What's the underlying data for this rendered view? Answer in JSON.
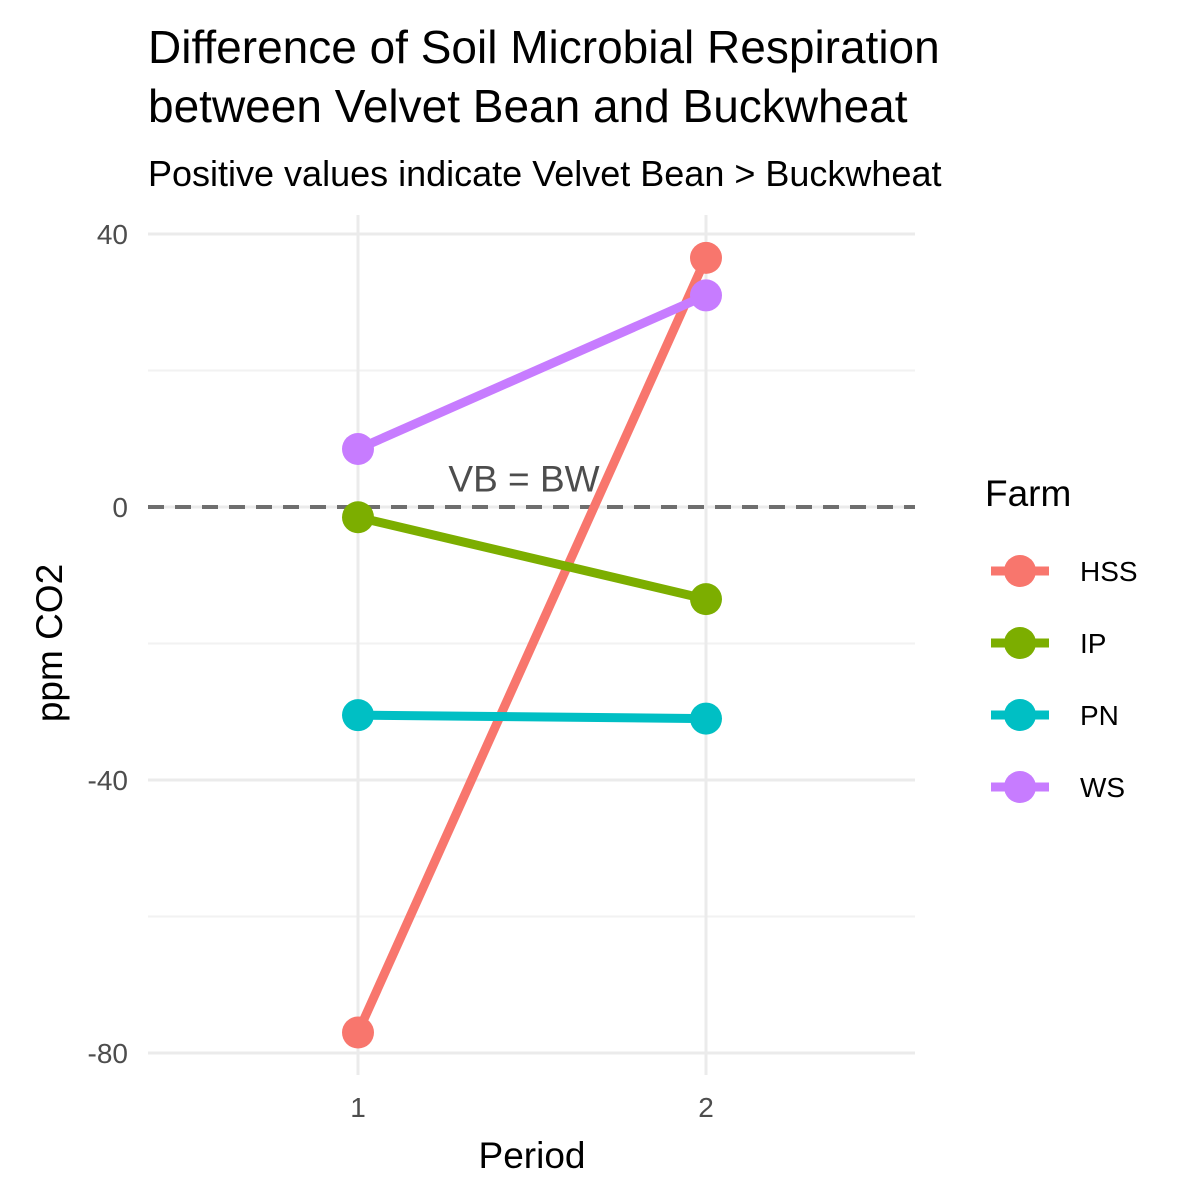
{
  "chart_data": {
    "type": "line",
    "title_lines": [
      "Difference of Soil Microbial Respiration",
      "between Velvet Bean and Buckwheat"
    ],
    "subtitle": "Positive values indicate Velvet Bean > Buckwheat",
    "xlabel": "Period",
    "ylabel": "ppm CO2",
    "x_ticks": [
      1,
      2
    ],
    "x_tick_labels": [
      "1",
      "2"
    ],
    "xlim": [
      0.43,
      2.6
    ],
    "y_ticks": [
      40,
      0,
      -40,
      -80
    ],
    "y_tick_labels": [
      "40",
      "0",
      "-40",
      "-80"
    ],
    "ylim": [
      -80,
      40
    ],
    "grid": true,
    "reference_line": {
      "y": 0,
      "style": "dashed",
      "color": "#6e6e6e"
    },
    "annotation": {
      "text": "VB = BW",
      "x": 1.5,
      "y": 4
    },
    "legend": {
      "title": "Farm",
      "placement": "right"
    },
    "x": [
      1,
      2
    ],
    "series": [
      {
        "name": "HSS",
        "color": "#F8766D",
        "values": [
          -77,
          36.5
        ]
      },
      {
        "name": "IP",
        "color": "#7CAE00",
        "values": [
          -1.5,
          -13.5
        ]
      },
      {
        "name": "PN",
        "color": "#00BFC4",
        "values": [
          -30.5,
          -31
        ]
      },
      {
        "name": "WS",
        "color": "#C77CFF",
        "values": [
          8.5,
          31
        ]
      }
    ]
  }
}
